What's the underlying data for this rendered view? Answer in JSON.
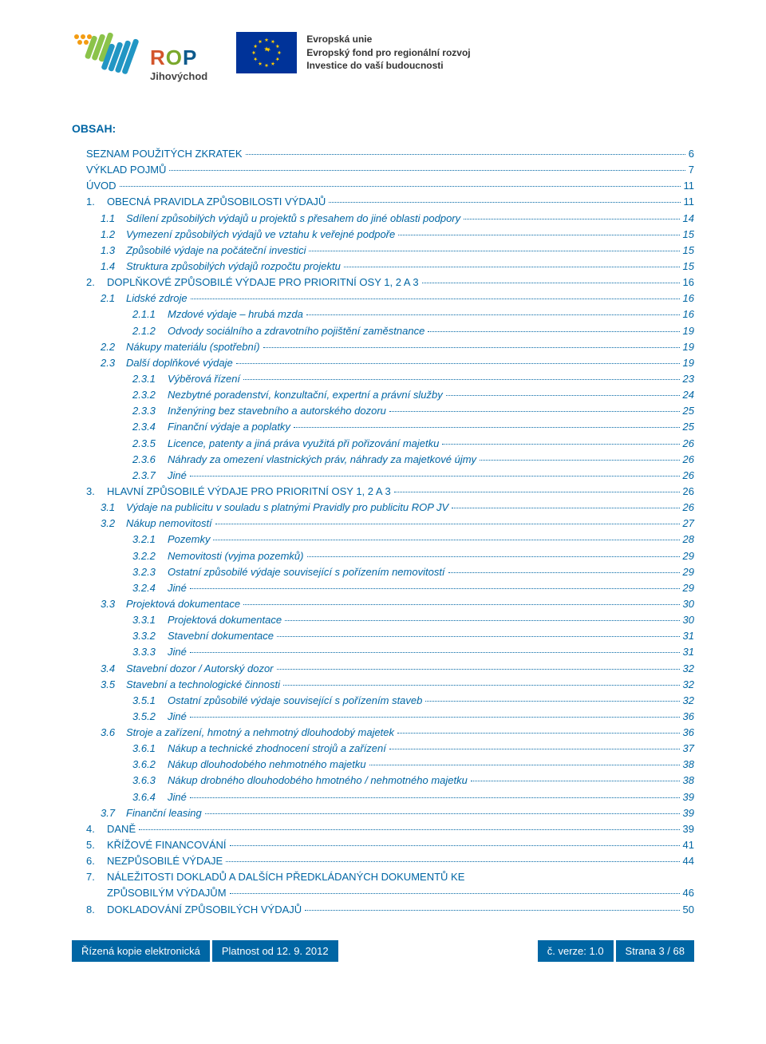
{
  "colors": {
    "accent": "#0066a4",
    "eu_flag_bg": "#003399",
    "text": "#333333",
    "rop_orange": "#f39c12",
    "rop_green": "#8bc34a",
    "rop_blue": "#2196c4",
    "rop_r": "#d3552b",
    "rop_o": "#7aa82c",
    "rop_p": "#0d5a8c"
  },
  "header": {
    "rop_main": "ROP",
    "rop_sub": "Jihovýchod",
    "eu_line1": "Evropská unie",
    "eu_line2": "Evropský fond pro regionální rozvoj",
    "eu_line3": "Investice do vaší budoucnosti"
  },
  "section_title": "OBSAH:",
  "toc": [
    {
      "lvl": 1,
      "num": "",
      "label": "SEZNAM POUŽITÝCH ZKRATEK",
      "page": "6"
    },
    {
      "lvl": 1,
      "num": "",
      "label": "VÝKLAD POJMŮ",
      "page": "7"
    },
    {
      "lvl": 1,
      "num": "",
      "label": "ÚVOD",
      "page": "11"
    },
    {
      "lvl": 1,
      "num": "1.",
      "label": "OBECNÁ PRAVIDLA ZPŮSOBILOSTI VÝDAJŮ",
      "page": "11"
    },
    {
      "lvl": 2,
      "num": "1.1",
      "label": "Sdílení způsobilých výdajů u projektů s přesahem do jiné oblasti podpory",
      "page": "14"
    },
    {
      "lvl": 2,
      "num": "1.2",
      "label": "Vymezení způsobilých výdajů ve vztahu k veřejné podpoře",
      "page": "15"
    },
    {
      "lvl": 2,
      "num": "1.3",
      "label": "Způsobilé výdaje na počáteční investici",
      "page": "15"
    },
    {
      "lvl": 2,
      "num": "1.4",
      "label": "Struktura způsobilých výdajů rozpočtu projektu",
      "page": "15"
    },
    {
      "lvl": 1,
      "num": "2.",
      "label": "DOPLŇKOVÉ ZPŮSOBILÉ VÝDAJE PRO PRIORITNÍ OSY 1, 2 A 3",
      "page": "16"
    },
    {
      "lvl": 2,
      "num": "2.1",
      "label": "Lidské zdroje",
      "page": "16"
    },
    {
      "lvl": 3,
      "num": "2.1.1",
      "label": "Mzdové výdaje – hrubá mzda",
      "page": "16"
    },
    {
      "lvl": 3,
      "num": "2.1.2",
      "label": "Odvody sociálního a zdravotního pojištění zaměstnance",
      "page": "19"
    },
    {
      "lvl": 2,
      "num": "2.2",
      "label": "Nákupy materiálu (spotřební)",
      "page": "19"
    },
    {
      "lvl": 2,
      "num": "2.3",
      "label": "Další doplňkové výdaje",
      "page": "19"
    },
    {
      "lvl": 3,
      "num": "2.3.1",
      "label": "Výběrová řízení",
      "page": "23"
    },
    {
      "lvl": 3,
      "num": "2.3.2",
      "label": "Nezbytné poradenství, konzultační, expertní a právní služby",
      "page": "24"
    },
    {
      "lvl": 3,
      "num": "2.3.3",
      "label": "Inženýring bez stavebního a autorského dozoru",
      "page": "25"
    },
    {
      "lvl": 3,
      "num": "2.3.4",
      "label": "Finanční výdaje a poplatky",
      "page": "25"
    },
    {
      "lvl": 3,
      "num": "2.3.5",
      "label": "Licence, patenty a jiná práva využitá při pořizování majetku",
      "page": "26"
    },
    {
      "lvl": 3,
      "num": "2.3.6",
      "label": "Náhrady za omezení vlastnických práv, náhrady za majetkové újmy",
      "page": "26"
    },
    {
      "lvl": 3,
      "num": "2.3.7",
      "label": "Jiné",
      "page": "26"
    },
    {
      "lvl": 1,
      "num": "3.",
      "label": "HLAVNÍ ZPŮSOBILÉ VÝDAJE PRO PRIORITNÍ OSY 1, 2 A 3",
      "page": "26"
    },
    {
      "lvl": 2,
      "num": "3.1",
      "label": "Výdaje na publicitu v souladu s platnými Pravidly pro publicitu ROP JV",
      "page": "26"
    },
    {
      "lvl": 2,
      "num": "3.2",
      "label": "Nákup nemovitostí",
      "page": "27"
    },
    {
      "lvl": 3,
      "num": "3.2.1",
      "label": "Pozemky",
      "page": "28"
    },
    {
      "lvl": 3,
      "num": "3.2.2",
      "label": "Nemovitosti (vyjma pozemků)",
      "page": "29"
    },
    {
      "lvl": 3,
      "num": "3.2.3",
      "label": "Ostatní způsobilé výdaje související s pořízením nemovitostí",
      "page": "29"
    },
    {
      "lvl": 3,
      "num": "3.2.4",
      "label": "Jiné",
      "page": "29"
    },
    {
      "lvl": 2,
      "num": "3.3",
      "label": "Projektová dokumentace",
      "page": "30"
    },
    {
      "lvl": 3,
      "num": "3.3.1",
      "label": "Projektová dokumentace",
      "page": "30"
    },
    {
      "lvl": 3,
      "num": "3.3.2",
      "label": "Stavební dokumentace",
      "page": "31"
    },
    {
      "lvl": 3,
      "num": "3.3.3",
      "label": "Jiné",
      "page": "31"
    },
    {
      "lvl": 2,
      "num": "3.4",
      "label": "Stavební dozor / Autorský dozor",
      "page": "32"
    },
    {
      "lvl": 2,
      "num": "3.5",
      "label": "Stavební a technologické činnosti",
      "page": "32"
    },
    {
      "lvl": 3,
      "num": "3.5.1",
      "label": "Ostatní způsobilé výdaje související s pořízením staveb",
      "page": "32"
    },
    {
      "lvl": 3,
      "num": "3.5.2",
      "label": "Jiné",
      "page": "36"
    },
    {
      "lvl": 2,
      "num": "3.6",
      "label": "Stroje a zařízení, hmotný a nehmotný dlouhodobý majetek",
      "page": "36"
    },
    {
      "lvl": 3,
      "num": "3.6.1",
      "label": "Nákup a technické zhodnocení strojů a zařízení",
      "page": "37"
    },
    {
      "lvl": 3,
      "num": "3.6.2",
      "label": "Nákup dlouhodobého nehmotného majetku",
      "page": "38"
    },
    {
      "lvl": 3,
      "num": "3.6.3",
      "label": "Nákup drobného dlouhodobého hmotného / nehmotného majetku",
      "page": "38"
    },
    {
      "lvl": 3,
      "num": "3.6.4",
      "label": "Jiné",
      "page": "39"
    },
    {
      "lvl": 2,
      "num": "3.7",
      "label": "Finanční leasing",
      "page": "39"
    },
    {
      "lvl": 1,
      "num": "4.",
      "label": "DANĚ",
      "page": "39"
    },
    {
      "lvl": 1,
      "num": "5.",
      "label": "KŘÍŽOVÉ FINANCOVÁNÍ",
      "page": "41"
    },
    {
      "lvl": 1,
      "num": "6.",
      "label": "NEZPŮSOBILÉ VÝDAJE",
      "page": "44"
    },
    {
      "lvl": 1,
      "num": "7.",
      "label": "NÁLEŽITOSTI DOKLADŮ A DALŠÍCH PŘEDKLÁDANÝCH DOKUMENTŮ KE ZPŮSOBILÝM VÝDAJŮM",
      "page": "46",
      "wrap": true
    },
    {
      "lvl": 1,
      "num": "8.",
      "label": "DOKLADOVÁNÍ ZPŮSOBILÝCH VÝDAJŮ",
      "page": "50"
    }
  ],
  "footer": {
    "cell1": "Řízená kopie elektronická",
    "cell2": "Platnost od 12. 9. 2012",
    "cell3": "č. verze: 1.0",
    "cell4": "Strana 3 / 68"
  }
}
